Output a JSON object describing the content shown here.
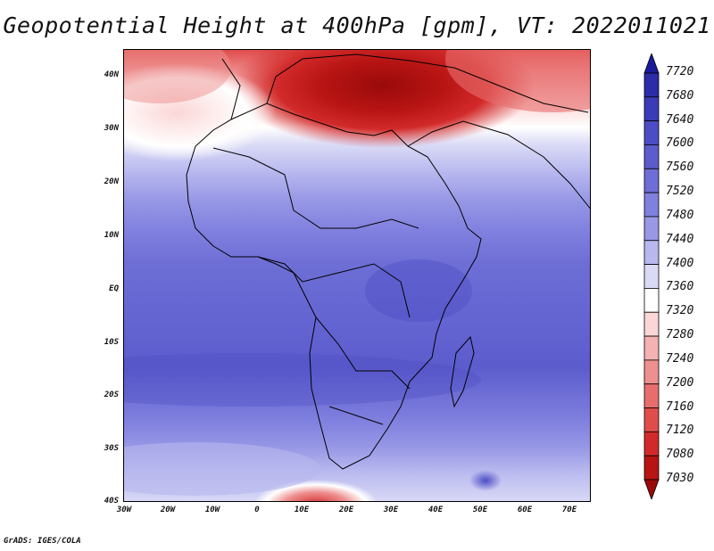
{
  "title": "Geopotential Height at 400hPa [gpm], VT: 2022011021",
  "footer": "GrADS: IGES/COLA",
  "map": {
    "lat_ticks": [
      "40N",
      "30N",
      "20N",
      "10N",
      "EQ",
      "10S",
      "20S",
      "30S",
      "40S"
    ],
    "lon_ticks": [
      "30W",
      "20W",
      "10W",
      "0",
      "10E",
      "20E",
      "30E",
      "40E",
      "50E",
      "60E",
      "70E"
    ],
    "region": "Africa and surroundings, 30W-75E, 40S-45N"
  },
  "colorbar": {
    "levels": [
      "7720",
      "7680",
      "7640",
      "7600",
      "7560",
      "7520",
      "7480",
      "7440",
      "7400",
      "7360",
      "7320",
      "7280",
      "7240",
      "7200",
      "7160",
      "7120",
      "7080",
      "7030"
    ],
    "colors": [
      "#1a1a9a",
      "#2c2ca8",
      "#3b3bb8",
      "#4c4cc4",
      "#5c5ccd",
      "#6e6ed6",
      "#8080df",
      "#9898e6",
      "#b8b8ef",
      "#dadaf6",
      "#ffffff",
      "#fbd6d6",
      "#f4b2b2",
      "#ee9090",
      "#e86e6e",
      "#e04c4c",
      "#d22a2a",
      "#b81414",
      "#9a0a0a"
    ]
  },
  "chart_data": {
    "type": "heatmap",
    "title": "Geopotential Height at 400hPa [gpm], VT: 2022011021",
    "variable": "Geopotential Height",
    "level": "400hPa",
    "units": "gpm",
    "valid_time": "2022011021",
    "xlim": [
      -30,
      75
    ],
    "ylim": [
      -40,
      45
    ],
    "x_tick_labels": [
      "30W",
      "20W",
      "10W",
      "0",
      "10E",
      "20E",
      "30E",
      "40E",
      "50E",
      "60E",
      "70E"
    ],
    "y_tick_labels": [
      "40N",
      "30N",
      "20N",
      "10N",
      "EQ",
      "10S",
      "20S",
      "30S",
      "40S"
    ],
    "colorbar_levels": [
      7720,
      7680,
      7640,
      7600,
      7560,
      7520,
      7480,
      7440,
      7400,
      7360,
      7320,
      7280,
      7240,
      7200,
      7160,
      7120,
      7080,
      7030
    ]
  }
}
